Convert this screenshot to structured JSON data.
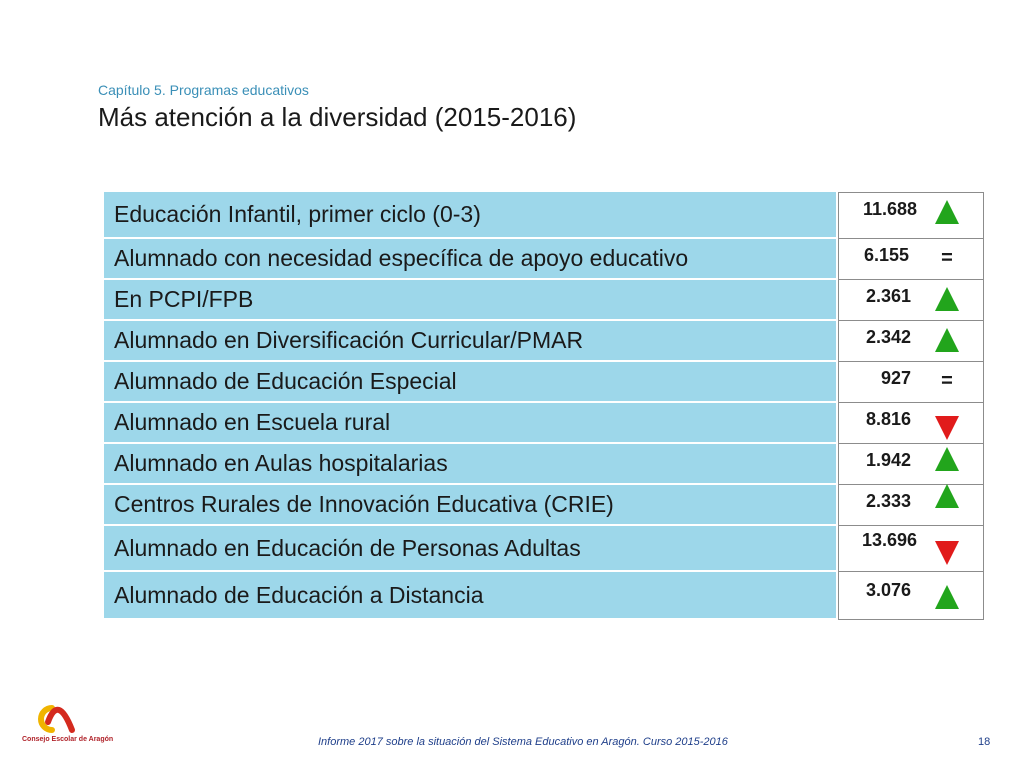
{
  "header": {
    "chapter": "Capítulo 5. Programas educativos",
    "title": "Más atención a la diversidad (2015-2016)"
  },
  "colors": {
    "label_bg": "#9dd7ea",
    "up": "#22a51c",
    "down": "#e11b1b",
    "chapter_text": "#3a8fb7",
    "footer_text": "#1f3f8a"
  },
  "rows": [
    {
      "label": "Educación Infantil, primer ciclo (0-3)",
      "value": "11.688",
      "trend": "up"
    },
    {
      "label": "Alumnado con necesidad específica de apoyo educativo",
      "value": "6.155",
      "trend": "equal",
      "symbol": "="
    },
    {
      "label": "En PCPI/FPB",
      "value": "2.361",
      "trend": "up"
    },
    {
      "label": "Alumnado en Diversificación Curricular/PMAR",
      "value": "2.342",
      "trend": "up"
    },
    {
      "label": "Alumnado de Educación Especial",
      "value": "927",
      "trend": "equal",
      "symbol": "="
    },
    {
      "label": "Alumnado en Escuela rural",
      "value": "8.816",
      "trend": "down"
    },
    {
      "label": "Alumnado en Aulas hospitalarias",
      "value": "1.942",
      "trend": "up"
    },
    {
      "label": "Centros Rurales de Innovación Educativa (CRIE)",
      "value": "2.333",
      "trend": "up"
    },
    {
      "label": "Alumnado en Educación de Personas Adultas",
      "value": "13.696",
      "trend": "down"
    },
    {
      "label": "Alumnado de Educación a Distancia",
      "value": "3.076",
      "trend": "up"
    }
  ],
  "footer": {
    "logo_text": "Consejo Escolar de Aragón",
    "report": "Informe 2017 sobre la situación del Sistema Educativo en Aragón. Curso 2015-2016",
    "page": "18"
  }
}
